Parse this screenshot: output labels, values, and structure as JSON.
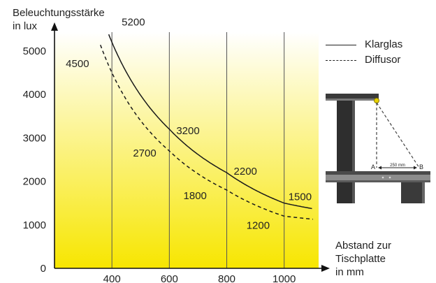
{
  "chart_data": {
    "type": "line",
    "ylabel": "Beleuchtungsstärke\nin lux",
    "xlabel": "Abstand zur\nTischplatte\nin mm",
    "x_ticks": [
      400,
      600,
      800,
      1000
    ],
    "y_ticks": [
      0,
      1000,
      2000,
      3000,
      4000,
      5000
    ],
    "xlim": [
      200,
      1120
    ],
    "ylim": [
      0,
      5400
    ],
    "grid": "vertical",
    "legend_position": "top-right",
    "series": [
      {
        "name": "Klarglas",
        "style": "solid",
        "x": [
          400,
          600,
          800,
          1000,
          1100
        ],
        "y": [
          5200,
          3200,
          2200,
          1500,
          1370
        ],
        "labels": [
          {
            "x": 400,
            "y": 5200,
            "text": "5200"
          },
          {
            "x": 600,
            "y": 3200,
            "text": "3200"
          },
          {
            "x": 800,
            "y": 2200,
            "text": "2200"
          },
          {
            "x": 1000,
            "y": 1500,
            "text": "1500"
          }
        ]
      },
      {
        "name": "Diffusor",
        "style": "dashed",
        "x": [
          400,
          600,
          800,
          1000,
          1100
        ],
        "y": [
          4500,
          2700,
          1800,
          1200,
          1130
        ],
        "labels": [
          {
            "x": 400,
            "y": 4500,
            "text": "4500"
          },
          {
            "x": 600,
            "y": 2700,
            "text": "2700"
          },
          {
            "x": 800,
            "y": 1800,
            "text": "1800"
          },
          {
            "x": 1000,
            "y": 1200,
            "text": "1200"
          }
        ]
      }
    ]
  },
  "inset": {
    "point_a": "A",
    "point_b": "B",
    "distance": "250 mm"
  },
  "colors": {
    "gradient_top": "#ffffff",
    "gradient_bottom": "#f7e600",
    "line": "#1a1a1a",
    "grid": "#555555"
  }
}
